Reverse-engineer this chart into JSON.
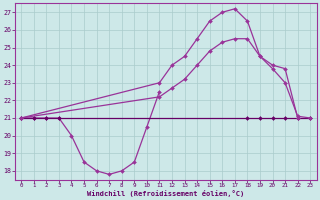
{
  "xlabel": "Windchill (Refroidissement éolien,°C)",
  "background_color": "#cde8e8",
  "grid_color": "#aacccc",
  "line_color1": "#993399",
  "line_color2": "#660066",
  "ylim": [
    17.5,
    27.5
  ],
  "xlim": [
    -0.5,
    23.5
  ],
  "yticks": [
    18,
    19,
    20,
    21,
    22,
    23,
    24,
    25,
    26,
    27
  ],
  "xticks": [
    0,
    1,
    2,
    3,
    4,
    5,
    6,
    7,
    8,
    9,
    10,
    11,
    12,
    13,
    14,
    15,
    16,
    17,
    18,
    19,
    20,
    21,
    22,
    23
  ],
  "line_windchill": {
    "x": [
      0,
      1,
      2,
      3,
      4,
      5,
      6,
      7,
      8,
      9,
      10,
      11
    ],
    "y": [
      21,
      21,
      21,
      21,
      20,
      18.5,
      18,
      17.8,
      18,
      18.5,
      20.5,
      22.5
    ]
  },
  "line_flat": {
    "x": [
      0,
      3,
      23
    ],
    "y": [
      21,
      21,
      21
    ]
  },
  "line_flat_marked": {
    "x": [
      0,
      1,
      2,
      3,
      18,
      19,
      20,
      21,
      22,
      23
    ],
    "y": [
      21,
      21,
      21,
      21,
      21,
      21,
      21,
      21,
      21,
      21
    ]
  },
  "line_diagonal_low": {
    "x": [
      0,
      11,
      12,
      13,
      14,
      15,
      16,
      17,
      18,
      19,
      20,
      21,
      22,
      23
    ],
    "y": [
      21,
      22.2,
      22.7,
      23.2,
      24.0,
      24.8,
      25.3,
      25.5,
      25.5,
      24.5,
      23.8,
      23.0,
      21.1,
      21
    ]
  },
  "line_arc_high": {
    "x": [
      0,
      11,
      12,
      13,
      14,
      15,
      16,
      17,
      18,
      19,
      20,
      21,
      22
    ],
    "y": [
      21,
      23.0,
      24.0,
      24.5,
      25.5,
      26.5,
      27.0,
      27.2,
      26.5,
      24.5,
      24.0,
      23.8,
      21.0
    ]
  }
}
